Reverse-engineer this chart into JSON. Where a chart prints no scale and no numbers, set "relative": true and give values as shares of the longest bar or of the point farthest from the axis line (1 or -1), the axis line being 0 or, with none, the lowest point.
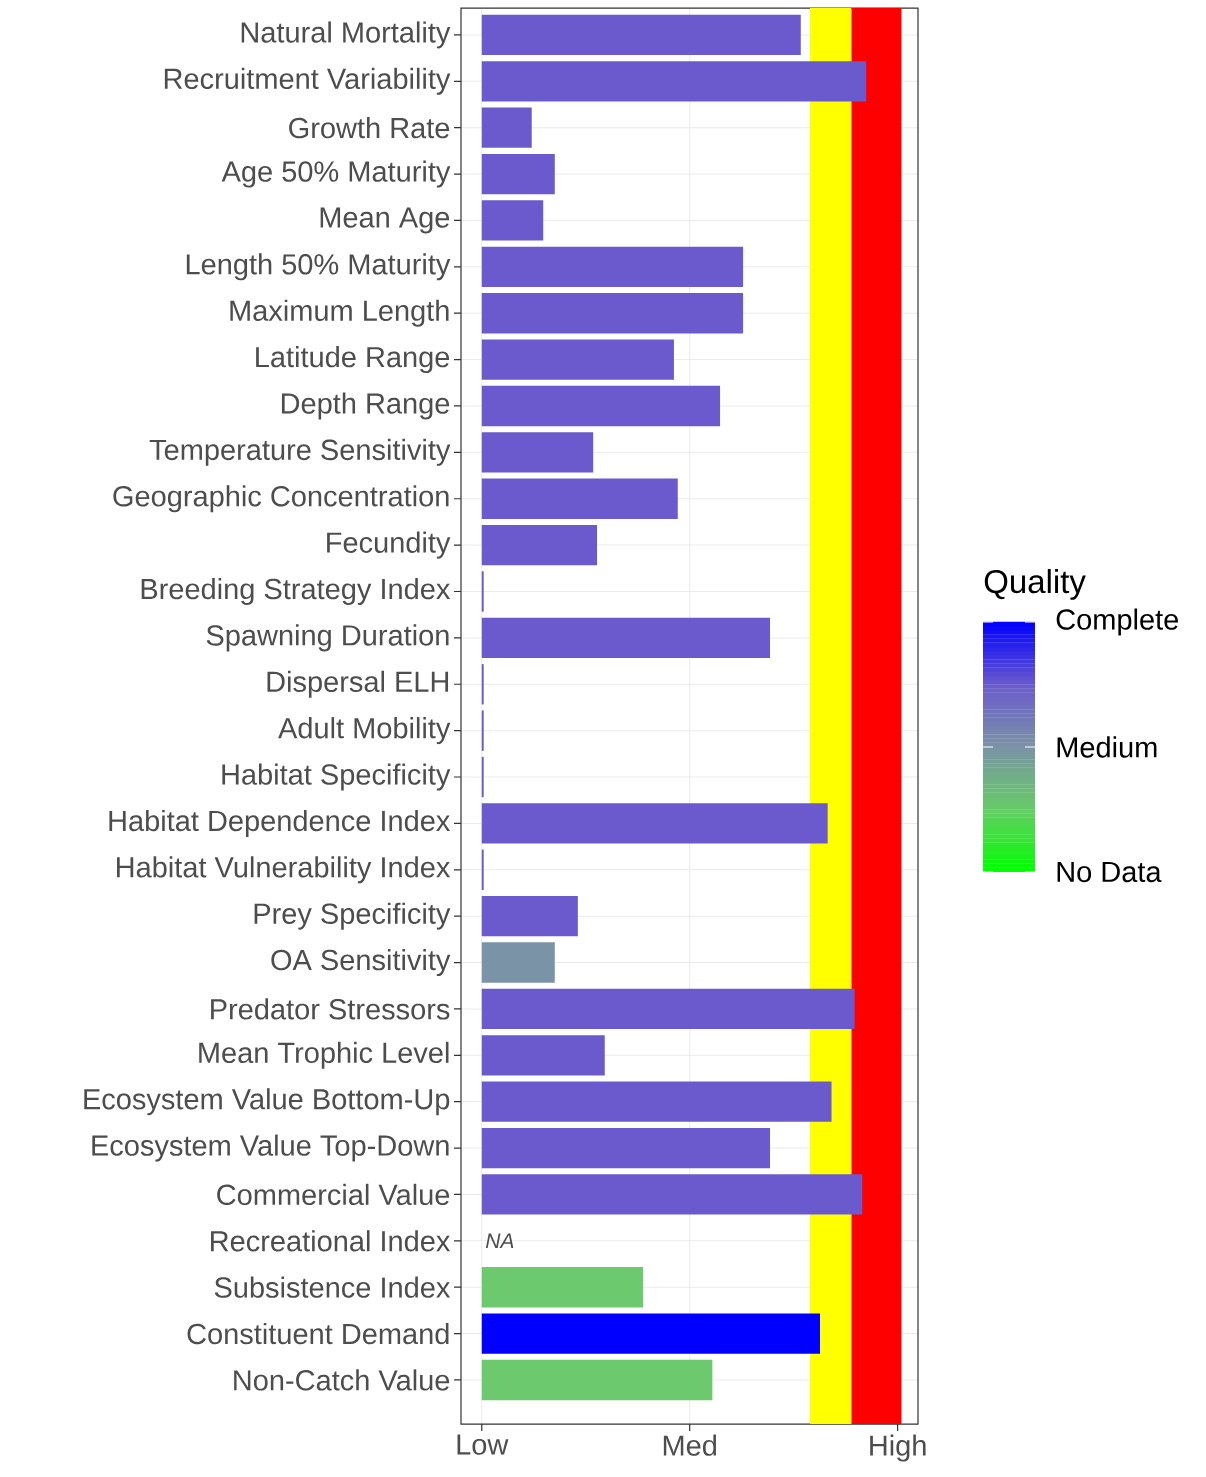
{
  "chart_data": {
    "type": "bar",
    "orientation": "horizontal",
    "categories": [
      "Natural Mortality",
      "Recruitment Variability",
      "Growth Rate",
      "Age 50% Maturity",
      "Mean Age",
      "Length 50% Maturity",
      "Maximum Length",
      "Latitude Range",
      "Depth Range",
      "Temperature Sensitivity",
      "Geographic Concentration",
      "Fecundity",
      "Breeding Strategy Index",
      "Spawning Duration",
      "Dispersal ELH",
      "Adult Mobility",
      "Habitat Specificity",
      "Habitat Dependence Index",
      "Habitat Vulnerability Index",
      "Prey Specificity",
      "OA Sensitivity",
      "Predator Stressors",
      "Mean Trophic Level",
      "Ecosystem Value Bottom-Up",
      "Ecosystem Value Top-Down",
      "Commercial Value",
      "Recreational Index",
      "Subsistence Index",
      "Constituent Demand",
      "Non-Catch Value"
    ],
    "relative": true,
    "values": [
      0.83,
      1,
      0.13,
      0.19,
      0.16,
      0.68,
      0.68,
      0.5,
      0.62,
      0.29,
      0.51,
      0.3,
      0.005,
      0.75,
      0.005,
      0.005,
      0.005,
      0.9,
      0.005,
      0.25,
      0.19,
      0.97,
      0.32,
      0.91,
      0.75,
      0.99,
      null,
      0.42,
      0.88,
      0.6
    ],
    "colors": [
      "#6a5acd",
      "#6a5acd",
      "#6a5acd",
      "#6a5acd",
      "#6a5acd",
      "#6a5acd",
      "#6a5acd",
      "#6a5acd",
      "#6a5acd",
      "#6a5acd",
      "#6a5acd",
      "#6a5acd",
      "#6a5acd",
      "#6a5acd",
      "#6a5acd",
      "#6a5acd",
      "#6a5acd",
      "#6a5acd",
      "#6a5acd",
      "#6a5acd",
      "#7b93a6",
      "#6a5acd",
      "#6a5acd",
      "#6a5acd",
      "#6a5acd",
      "#6a5acd",
      null,
      "#6cc96e",
      "#0000ff",
      "#6cc96e"
    ],
    "bands": [
      {
        "axis": "x",
        "from": 0.854,
        "to": 0.962,
        "color": "#ffff00"
      },
      {
        "axis": "x",
        "from": 0.962,
        "to": 1.092,
        "color": "#ff0000"
      }
    ],
    "annotations": [
      "NA",
      "Low",
      "Med",
      "High"
    ],
    "grid": true,
    "clabel": "Quality",
    "clim": [
      0,
      1
    ],
    "cticks": [
      {
        "value": 0,
        "label": "No Data"
      },
      {
        "value": 0.5,
        "label": "Medium"
      },
      {
        "value": 1,
        "label": "Complete"
      }
    ]
  }
}
